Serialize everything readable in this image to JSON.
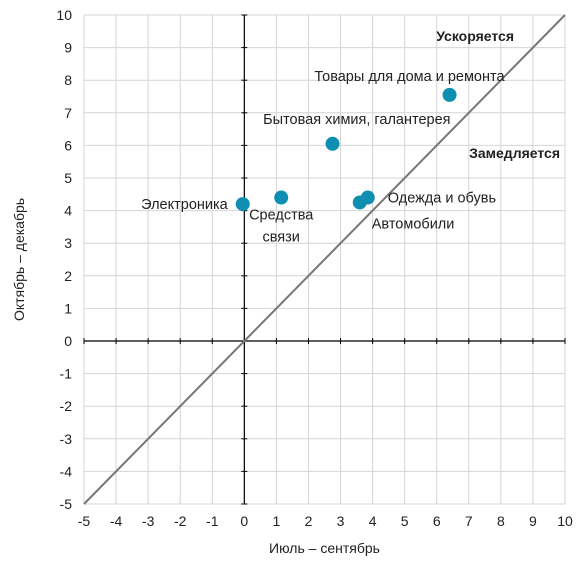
{
  "chart_data": {
    "type": "scatter",
    "xlabel": "Июль – сентябрь",
    "ylabel": "Октябрь – декабрь",
    "xlim": [
      -5,
      10
    ],
    "ylim": [
      -5,
      10
    ],
    "x_ticks": [
      "-5",
      "-4",
      "-3",
      "-2",
      "-1",
      "0",
      "1",
      "2",
      "3",
      "4",
      "5",
      "6",
      "7",
      "8",
      "9",
      "10"
    ],
    "y_ticks": [
      "-5",
      "-4",
      "-3",
      "-2",
      "-1",
      "0",
      "1",
      "2",
      "3",
      "4",
      "5",
      "6",
      "7",
      "8",
      "9",
      "10"
    ],
    "grid": true,
    "reference_line": {
      "type": "diagonal",
      "equation": "y = x"
    },
    "region_labels": {
      "above": "Ускоряется",
      "below": "Замедляется"
    },
    "points": [
      {
        "label": "Товары для дома и ремонта",
        "x": 6.4,
        "y": 7.55
      },
      {
        "label": "Бытовая химия, галантерея",
        "x": 2.75,
        "y": 6.05
      },
      {
        "label": "Электроника",
        "x": -0.05,
        "y": 4.2
      },
      {
        "label": "Средства связи",
        "x": 1.15,
        "y": 4.4
      },
      {
        "label": "Одежда и обувь",
        "x": 3.85,
        "y": 4.4
      },
      {
        "label": "Автомобили",
        "x": 3.6,
        "y": 4.25
      }
    ],
    "marker_color": "#0e8fb1",
    "line_color": "#777777",
    "grid_color": "#d4d4d4"
  }
}
